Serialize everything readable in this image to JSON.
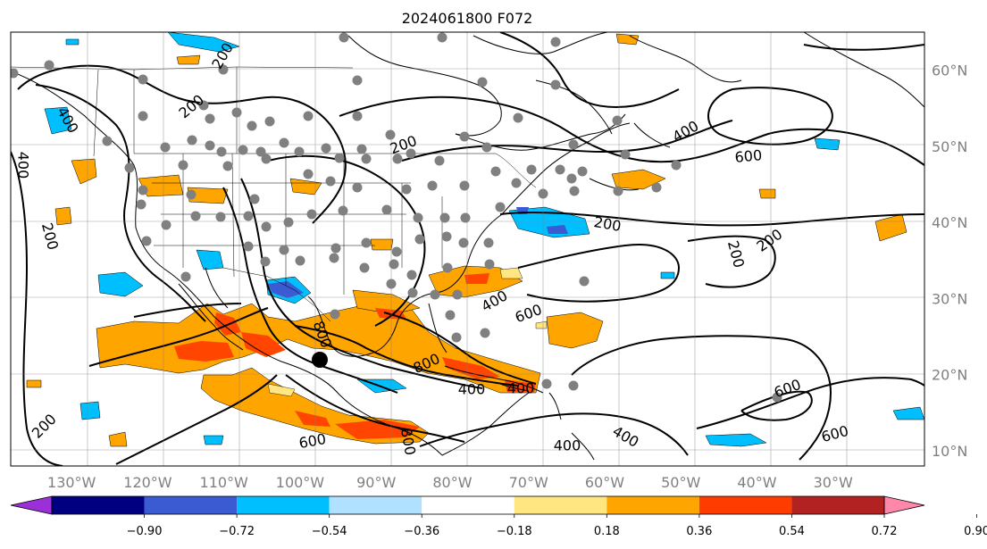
{
  "map": {
    "title": "2024061800 F072",
    "lon_labels": [
      "130°W",
      "120°W",
      "110°W",
      "100°W",
      "90°W",
      "80°W",
      "70°W",
      "60°W",
      "50°W",
      "40°W",
      "30°W"
    ],
    "lat_labels": [
      "60°N",
      "50°N",
      "40°N",
      "30°N",
      "20°N",
      "10°N"
    ],
    "lon_range": [
      -138,
      -18
    ],
    "lat_range": [
      8,
      65
    ],
    "contour_labels": [
      "200",
      "400",
      "600",
      "800"
    ],
    "colorbar": {
      "tick_labels": [
        "−0.90",
        "−0.72",
        "−0.54",
        "−0.36",
        "−0.18",
        "0.18",
        "0.36",
        "0.54",
        "0.72",
        "0.90"
      ],
      "colors": [
        "#9b30d9",
        "#000080",
        "#3a5bd1",
        "#00bfff",
        "#b0e2ff",
        "#ffffff",
        "#ffe680",
        "#ffa500",
        "#ff3c00",
        "#b22222",
        "#ff88aa"
      ]
    },
    "colors": {
      "orange": "#ffa500",
      "red_orange": "#ff4500",
      "yellow": "#ffe680",
      "cyan": "#00bfff",
      "light_blue": "#b0e2ff",
      "blue": "#3a5bd1",
      "station_marker": "#808080"
    }
  }
}
